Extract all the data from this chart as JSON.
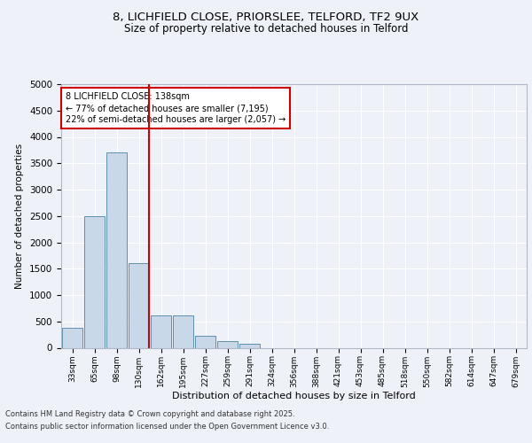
{
  "title_line1": "8, LICHFIELD CLOSE, PRIORSLEE, TELFORD, TF2 9UX",
  "title_line2": "Size of property relative to detached houses in Telford",
  "xlabel": "Distribution of detached houses by size in Telford",
  "ylabel": "Number of detached properties",
  "footer_line1": "Contains HM Land Registry data © Crown copyright and database right 2025.",
  "footer_line2": "Contains public sector information licensed under the Open Government Licence v3.0.",
  "categories": [
    "33sqm",
    "65sqm",
    "98sqm",
    "130sqm",
    "162sqm",
    "195sqm",
    "227sqm",
    "259sqm",
    "291sqm",
    "324sqm",
    "356sqm",
    "388sqm",
    "421sqm",
    "453sqm",
    "485sqm",
    "518sqm",
    "550sqm",
    "582sqm",
    "614sqm",
    "647sqm",
    "679sqm"
  ],
  "values": [
    370,
    2500,
    3700,
    1600,
    620,
    620,
    230,
    130,
    80,
    0,
    0,
    0,
    0,
    0,
    0,
    0,
    0,
    0,
    0,
    0,
    0
  ],
  "bar_color": "#c8d8e8",
  "bar_edge_color": "#6090b0",
  "vline_index": 3,
  "vline_color": "#cc0000",
  "ylim": [
    0,
    5000
  ],
  "yticks": [
    0,
    500,
    1000,
    1500,
    2000,
    2500,
    3000,
    3500,
    4000,
    4500,
    5000
  ],
  "annotation_text": "8 LICHFIELD CLOSE: 138sqm\n← 77% of detached houses are smaller (7,195)\n22% of semi-detached houses are larger (2,057) →",
  "annotation_box_color": "#cc0000",
  "bg_color": "#eef2f8",
  "plot_bg_color": "#eef2f8",
  "grid_color": "#ffffff",
  "title_fontsize": 9.5,
  "subtitle_fontsize": 8.5
}
